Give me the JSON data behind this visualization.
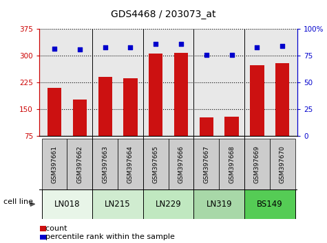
{
  "title": "GDS4468 / 203073_at",
  "samples": [
    "GSM397661",
    "GSM397662",
    "GSM397663",
    "GSM397664",
    "GSM397665",
    "GSM397666",
    "GSM397667",
    "GSM397668",
    "GSM397669",
    "GSM397670"
  ],
  "counts": [
    210,
    178,
    242,
    238,
    307,
    308,
    128,
    130,
    273,
    280
  ],
  "percentile_ranks": [
    82,
    81,
    83,
    83,
    86,
    86,
    76,
    76,
    83,
    84
  ],
  "cell_lines": [
    {
      "name": "LN018",
      "start": 0,
      "end": 1,
      "color": "#e8f5e8"
    },
    {
      "name": "LN215",
      "start": 2,
      "end": 3,
      "color": "#d0ecd0"
    },
    {
      "name": "LN229",
      "start": 4,
      "end": 5,
      "color": "#c0e8c0"
    },
    {
      "name": "LN319",
      "start": 6,
      "end": 7,
      "color": "#a8d8a8"
    },
    {
      "name": "BS149",
      "start": 8,
      "end": 9,
      "color": "#55cc55"
    }
  ],
  "bar_color": "#cc1111",
  "dot_color": "#0000cc",
  "ylim_left": [
    75,
    375
  ],
  "ylim_right": [
    0,
    100
  ],
  "yticks_left": [
    75,
    150,
    225,
    300,
    375
  ],
  "yticks_right": [
    0,
    25,
    50,
    75,
    100
  ],
  "left_axis_color": "#cc0000",
  "right_axis_color": "#0000cc",
  "plot_bg_color": "#e8e8e8",
  "bar_width": 0.55
}
